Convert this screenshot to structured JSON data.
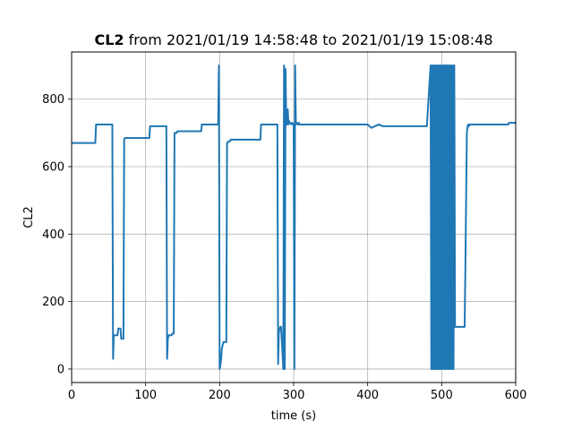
{
  "chart_data": {
    "type": "line",
    "title_bold": "CL2",
    "title_rest": " from 2021/01/19 14:58:48 to 2021/01/19 15:08:48",
    "xlabel": "time (s)",
    "ylabel": "CL2",
    "xlim": [
      0,
      600
    ],
    "ylim": [
      -40,
      940
    ],
    "xticks": [
      0,
      100,
      200,
      300,
      400,
      500,
      600
    ],
    "yticks": [
      0,
      200,
      400,
      600,
      800
    ],
    "grid": true,
    "line_color": "#1f77b4",
    "series": [
      {
        "x": [
          0,
          32,
          33,
          55,
          56,
          57,
          58,
          62,
          63,
          66,
          67,
          70,
          71,
          72,
          73,
          105,
          106,
          128,
          129,
          130,
          131,
          135,
          136,
          138,
          139,
          140,
          141,
          142,
          143,
          175,
          176,
          198,
          199,
          200,
          201,
          202,
          203,
          205,
          206,
          209,
          210,
          212,
          213,
          214,
          215,
          255,
          256,
          278,
          279,
          280,
          282,
          283,
          286,
          287,
          288,
          289,
          290,
          291,
          292,
          293,
          294,
          295,
          297,
          298,
          300,
          301,
          302,
          303,
          304,
          306,
          307,
          308,
          310,
          400,
          405,
          415,
          420,
          480,
          485,
          486,
          487,
          488,
          489,
          490,
          491,
          492,
          493,
          494,
          495,
          496,
          497,
          498,
          499,
          500,
          501,
          502,
          503,
          504,
          505,
          506,
          507,
          508,
          509,
          510,
          511,
          512,
          513,
          514,
          515,
          516,
          517,
          518,
          519,
          520,
          521,
          522,
          523,
          524,
          525,
          526,
          527,
          528,
          529,
          530,
          531,
          532,
          533,
          534,
          535,
          536,
          537,
          538,
          539,
          540,
          590,
          591,
          600
        ],
        "y": [
          670,
          670,
          725,
          725,
          30,
          100,
          100,
          100,
          120,
          120,
          90,
          90,
          680,
          685,
          685,
          685,
          720,
          720,
          30,
          90,
          100,
          100,
          105,
          105,
          700,
          700,
          700,
          700,
          705,
          705,
          725,
          725,
          900,
          0,
          10,
          30,
          60,
          80,
          80,
          80,
          670,
          675,
          675,
          675,
          680,
          680,
          725,
          725,
          15,
          110,
          125,
          125,
          0,
          900,
          0,
          890,
          725,
          725,
          770,
          725,
          735,
          730,
          725,
          730,
          725,
          0,
          900,
          725,
          730,
          725,
          730,
          725,
          725,
          725,
          715,
          725,
          720,
          720,
          900,
          0,
          900,
          0,
          900,
          0,
          900,
          0,
          900,
          0,
          900,
          0,
          900,
          0,
          900,
          0,
          900,
          0,
          900,
          0,
          900,
          0,
          900,
          0,
          900,
          0,
          900,
          0,
          900,
          0,
          900,
          0,
          900,
          125,
          125,
          125,
          125,
          125,
          125,
          125,
          125,
          125,
          125,
          125,
          125,
          125,
          125,
          300,
          500,
          700,
          720,
          725,
          720,
          725,
          725,
          725,
          725,
          730,
          730
        ]
      }
    ]
  }
}
